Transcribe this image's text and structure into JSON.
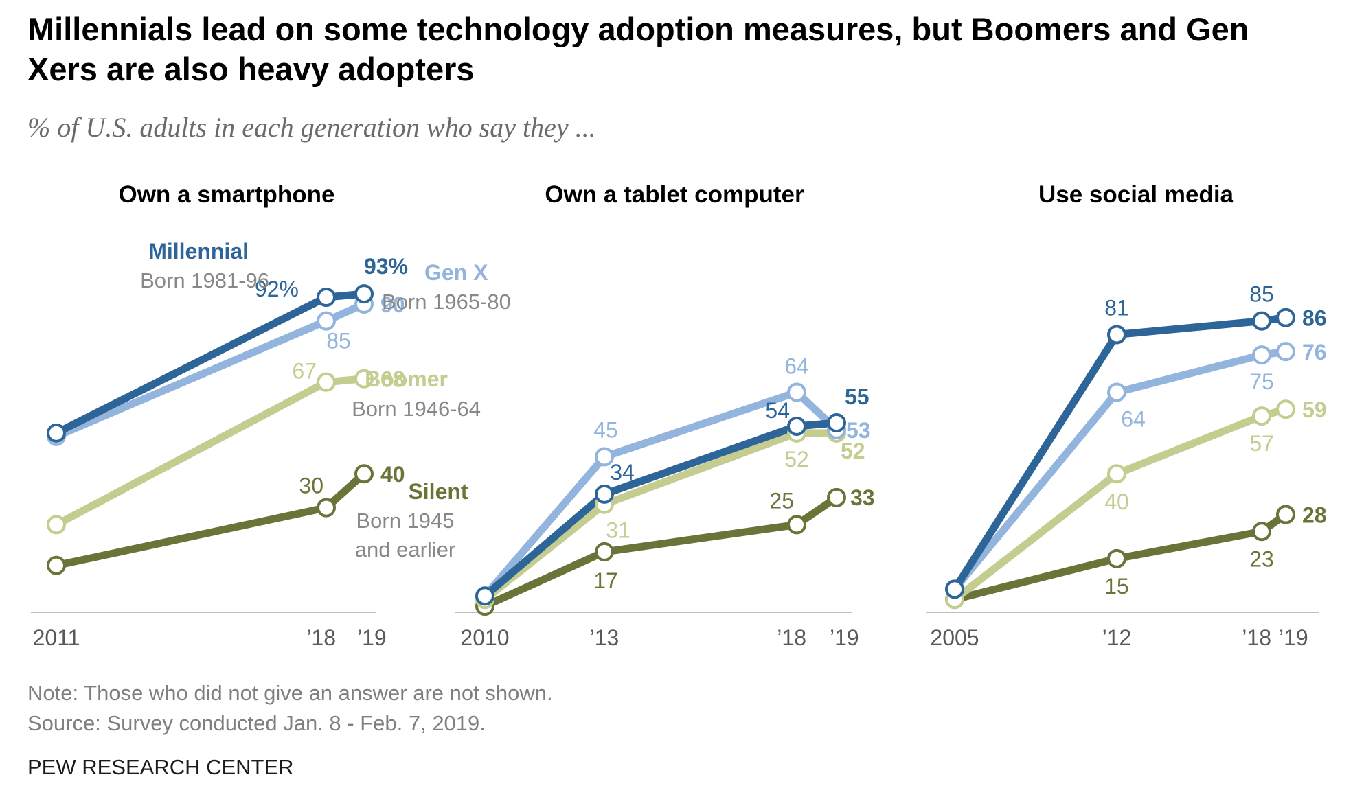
{
  "title": "Millennials lead on some technology adoption measures, but Boomers and Gen Xers are also heavy adopters",
  "subtitle": "% of U.S. adults in each generation who say they ...",
  "note": "Note: Those who did not give an answer are not shown.",
  "source": "Source: Survey conducted Jan. 8 - Feb. 7, 2019.",
  "brand": "PEW RESEARCH CENTER",
  "colors": {
    "Millennial": "#2e6598",
    "Gen X": "#92b4dd",
    "Boomer": "#c4cc8f",
    "Silent": "#6b7438",
    "axis": "#bfbfbf",
    "tick": "#595959",
    "muted": "#888888"
  },
  "generation_labels": [
    {
      "name": "Millennial",
      "born": "Born 1981-96"
    },
    {
      "name": "Gen X",
      "born": "Born 1965-80"
    },
    {
      "name": "Boomer",
      "born": "Born 1946-64"
    },
    {
      "name": "Silent",
      "born_lines": [
        "Born 1945",
        "and earlier"
      ]
    }
  ],
  "chart_data": [
    {
      "type": "line",
      "title": "Own a smartphone",
      "x": [
        2011,
        2018,
        2019
      ],
      "x_tick_labels": [
        "2011",
        "’18",
        "’19"
      ],
      "x_tick_positions": [
        2011,
        2018,
        2019
      ],
      "series": [
        {
          "name": "Millennial",
          "values": [
            52,
            92,
            93
          ],
          "labels": [
            "",
            "92%",
            "93%"
          ]
        },
        {
          "name": "Gen X",
          "values": [
            51,
            85,
            90
          ],
          "labels": [
            "",
            "85",
            "90"
          ]
        },
        {
          "name": "Boomer",
          "values": [
            25,
            67,
            68
          ],
          "labels": [
            "",
            "67",
            "68"
          ]
        },
        {
          "name": "Silent",
          "values": [
            13,
            30,
            40
          ],
          "labels": [
            "",
            "30",
            "40"
          ]
        }
      ]
    },
    {
      "type": "line",
      "title": "Own a tablet computer",
      "x": [
        2010,
        2013,
        2018,
        2019
      ],
      "x_tick_labels": [
        "2010",
        "’13",
        "’18",
        "’19"
      ],
      "x_tick_positions": [
        2010,
        2013,
        2018,
        2019
      ],
      "series": [
        {
          "name": "Millennial",
          "values": [
            4,
            34,
            54,
            55
          ],
          "labels": [
            "",
            "34",
            "54",
            "55"
          ]
        },
        {
          "name": "Gen X",
          "values": [
            4,
            45,
            64,
            53
          ],
          "labels": [
            "",
            "45",
            "64",
            "53"
          ]
        },
        {
          "name": "Boomer",
          "values": [
            3,
            31,
            52,
            52
          ],
          "labels": [
            "",
            "31",
            "52",
            "52"
          ]
        },
        {
          "name": "Silent",
          "values": [
            1,
            17,
            25,
            33
          ],
          "labels": [
            "",
            "17",
            "25",
            "33"
          ]
        }
      ]
    },
    {
      "type": "line",
      "title": "Use social media",
      "x": [
        2005,
        2012,
        2018,
        2019
      ],
      "x_tick_labels": [
        "2005",
        "’12",
        "’18",
        "’19"
      ],
      "x_tick_positions": [
        2005,
        2012,
        2018,
        2019
      ],
      "series": [
        {
          "name": "Millennial",
          "values": [
            6,
            81,
            85,
            86
          ],
          "labels": [
            "",
            "81",
            "85",
            "86"
          ]
        },
        {
          "name": "Gen X",
          "values": [
            6,
            64,
            75,
            76
          ],
          "labels": [
            "",
            "64",
            "75",
            "76"
          ]
        },
        {
          "name": "Boomer",
          "values": [
            3,
            40,
            57,
            59
          ],
          "labels": [
            "",
            "40",
            "57",
            "59"
          ]
        },
        {
          "name": "Silent",
          "values": [
            3,
            15,
            23,
            28
          ],
          "labels": [
            "",
            "15",
            "23",
            "28"
          ]
        }
      ]
    }
  ]
}
